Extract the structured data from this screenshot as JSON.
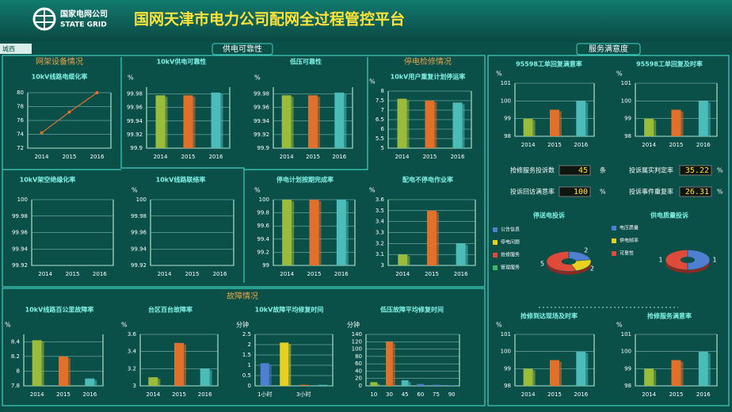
{
  "header": {
    "logo_cn": "国家电网公司",
    "logo_en": "STATE GRID",
    "title": "国网天津市电力公司配网全过程管控平台",
    "tab": "城西"
  },
  "sections": [
    "网架设备情况",
    "供电可靠性",
    "停电检修情况",
    "服务满意度",
    "故障情况"
  ],
  "kpis": [
    {
      "label": "抢修服务投诉数",
      "value": 45,
      "unit": "条"
    },
    {
      "label": "投诉回访满意率",
      "value": 100,
      "unit": "%"
    },
    {
      "label": "投诉属实判定率",
      "value": 35.22,
      "unit": "%"
    },
    {
      "label": "投诉事件重复率",
      "value": 26.31,
      "unit": "%"
    }
  ],
  "chart_data": [
    {
      "type": "line",
      "title": "10kV线路电缆化率",
      "categories": [
        "2014",
        "2015",
        "2016"
      ],
      "values": [
        74.2,
        77.2,
        80
      ],
      "color": "#e0702a",
      "ylim": [
        72,
        80
      ],
      "yticks": [
        72,
        74,
        76,
        78,
        80
      ],
      "grid": true
    },
    {
      "type": "bar",
      "title": "10kV供电可靠性",
      "unit": "%",
      "categories": [
        "2014",
        "2015",
        "2016"
      ],
      "values": [
        99.978,
        99.978,
        99.982
      ],
      "colors": [
        "#9bbb3a",
        "#e0702a",
        "#4bbcb8"
      ],
      "ylim": [
        99.9,
        99.99
      ],
      "yticks": [
        99.9,
        99.92,
        99.94,
        99.96,
        99.98
      ],
      "grid": true
    },
    {
      "type": "bar",
      "title": "低压可靠性",
      "unit": "%",
      "categories": [
        "2014",
        "2015",
        "2016"
      ],
      "values": [
        99.978,
        99.978,
        99.982
      ],
      "colors": [
        "#9bbb3a",
        "#e0702a",
        "#4bbcb8"
      ],
      "ylim": [
        99.9,
        99.99
      ],
      "yticks": [
        99.9,
        99.92,
        99.94,
        99.96,
        99.98
      ],
      "grid": true
    },
    {
      "type": "bar",
      "title": "10kV用户重复计划停运率",
      "unit": "%",
      "categories": [
        "2014",
        "2015",
        "2016"
      ],
      "values": [
        7.6,
        7.5,
        7.4
      ],
      "colors": [
        "#9bbb3a",
        "#e0702a",
        "#4bbcb8"
      ],
      "ylim": [
        5,
        8
      ],
      "yticks": [
        5,
        5.5,
        6,
        6.5,
        7,
        7.5,
        8
      ],
      "grid": true
    },
    {
      "type": "bar",
      "title": "10kV架空绝缘化率",
      "categories": [
        "2014",
        "2015",
        "2016"
      ],
      "values": [
        null,
        null,
        null
      ],
      "colors": [
        "#9bbb3a",
        "#e0702a",
        "#4bbcb8"
      ],
      "ylim": [
        99.92,
        100
      ],
      "yticks": [
        99.92,
        99.94,
        99.96,
        99.98,
        100
      ],
      "grid": true
    },
    {
      "type": "bar",
      "title": "10kV线路联络率",
      "unit": "%",
      "categories": [
        "2014",
        "2015",
        "2016"
      ],
      "values": [
        null,
        null,
        null
      ],
      "colors": [
        "#9bbb3a",
        "#e0702a",
        "#4bbcb8"
      ],
      "ylim": [
        99.92,
        100
      ],
      "yticks": [
        99.92,
        99.94,
        99.96,
        99.98,
        100
      ],
      "grid": true
    },
    {
      "type": "bar",
      "title": "停电计划按期完成率",
      "unit": "%",
      "categories": [
        "2014",
        "2015",
        "2016"
      ],
      "values": [
        100,
        100,
        100
      ],
      "colors": [
        "#9bbb3a",
        "#e0702a",
        "#4bbcb8"
      ],
      "ylim": [
        99,
        100
      ],
      "yticks": [
        99,
        99.2,
        99.4,
        99.6,
        99.8,
        100
      ],
      "grid": true
    },
    {
      "type": "bar",
      "title": "配电不停电作业率",
      "unit": "%",
      "categories": [
        "2014",
        "2015",
        "2016"
      ],
      "values": [
        3.1,
        3.5,
        3.2
      ],
      "colors": [
        "#9bbb3a",
        "#e0702a",
        "#4bbcb8"
      ],
      "ylim": [
        3,
        3.6
      ],
      "yticks": [
        3,
        3.1,
        3.2,
        3.3,
        3.4,
        3.5,
        3.6
      ],
      "grid": true
    },
    {
      "type": "bar",
      "title": "10kV线路百公里故障率",
      "unit": "%",
      "categories": [
        "2014",
        "2015",
        "2016"
      ],
      "values": [
        8.42,
        8.2,
        7.9
      ],
      "colors": [
        "#9bbb3a",
        "#e0702a",
        "#4bbcb8"
      ],
      "ylim": [
        7.8,
        8.5
      ],
      "yticks": [
        7.8,
        8,
        8.2,
        8.4
      ],
      "grid": true
    },
    {
      "type": "bar",
      "title": "台区百台故障率",
      "unit": "%",
      "categories": [
        "2014",
        "2015",
        "2016"
      ],
      "values": [
        3.1,
        3.5,
        3.2
      ],
      "colors": [
        "#9bbb3a",
        "#e0702a",
        "#4bbcb8"
      ],
      "ylim": [
        3,
        3.6
      ],
      "yticks": [
        3,
        3.2,
        3.4,
        3.6
      ],
      "grid": true
    },
    {
      "type": "bar",
      "title": "10kV故障平均修复时间",
      "unit": "分钟",
      "categories": [
        "1小时",
        null,
        "3小时",
        null
      ],
      "values": [
        1.1,
        2.1,
        0.05,
        0.05
      ],
      "colors": [
        "#4f7fd0",
        "#e8d020",
        "#e0702a",
        "#4bbcb8"
      ],
      "ylim": [
        0,
        2.5
      ],
      "yticks": [
        0,
        0.5,
        1,
        1.5,
        2,
        2.5
      ],
      "grid": true
    },
    {
      "type": "bar",
      "title": "低压故障平均修复时间",
      "unit": "分钟",
      "categories": [
        "10",
        "30",
        "45",
        "60",
        "75",
        "90"
      ],
      "values": [
        10,
        120,
        15,
        5,
        3,
        2
      ],
      "colors": [
        "#9bbb3a",
        "#e0702a",
        "#4bbcb8",
        "#4f7fd0",
        "#4f7fd0",
        "#4f7fd0"
      ],
      "ylim": [
        0,
        140
      ],
      "yticks": [
        0,
        20,
        40,
        60,
        80,
        100,
        120,
        140
      ],
      "grid": true
    },
    {
      "type": "bar",
      "title": "95598工单回复满意率",
      "unit": "%",
      "categories": [
        "2014",
        "2015",
        "2016"
      ],
      "values": [
        99,
        99.5,
        100
      ],
      "colors": [
        "#9bbb3a",
        "#e0702a",
        "#4bbcb8"
      ],
      "ylim": [
        98,
        101
      ],
      "yticks": [
        98,
        99,
        100,
        101
      ],
      "grid": true
    },
    {
      "type": "bar",
      "title": "95598工单回复及时率",
      "unit": "%",
      "categories": [
        "2014",
        "2015",
        "2016"
      ],
      "values": [
        99,
        99.5,
        100
      ],
      "colors": [
        "#9bbb3a",
        "#e0702a",
        "#4bbcb8"
      ],
      "ylim": [
        98,
        101
      ],
      "yticks": [
        98,
        99,
        100,
        101
      ],
      "grid": true
    },
    {
      "type": "pie",
      "title": "停送电投诉",
      "categories": [
        "公告信息",
        "停电问题",
        "抢修服务",
        "管理服务"
      ],
      "values": [
        2,
        2,
        5,
        0
      ],
      "colors": [
        "#4f7fd0",
        "#e8d020",
        "#e04a3a",
        "#3bb86a"
      ]
    },
    {
      "type": "pie",
      "title": "供电质量投诉",
      "categories": [
        "电压质量",
        "供电频率",
        "可靠性"
      ],
      "values": [
        1,
        0,
        1
      ],
      "colors": [
        "#4f7fd0",
        "#e8d020",
        "#e04a3a"
      ]
    },
    {
      "type": "bar",
      "title": "抢修到达现场及时率",
      "unit": "%",
      "categories": [
        "2014",
        "2015",
        "2016"
      ],
      "values": [
        99,
        99.5,
        100
      ],
      "colors": [
        "#9bbb3a",
        "#e0702a",
        "#4bbcb8"
      ],
      "ylim": [
        98,
        101
      ],
      "yticks": [
        98,
        99,
        100,
        101
      ],
      "grid": true
    },
    {
      "type": "bar",
      "title": "抢修服务满意率",
      "unit": "%",
      "categories": [
        "2014",
        "2015",
        "2016"
      ],
      "values": [
        99,
        99.5,
        100
      ],
      "colors": [
        "#9bbb3a",
        "#e0702a",
        "#4bbcb8"
      ],
      "ylim": [
        98,
        101
      ],
      "yticks": [
        98,
        99,
        100,
        101
      ],
      "grid": true
    }
  ]
}
